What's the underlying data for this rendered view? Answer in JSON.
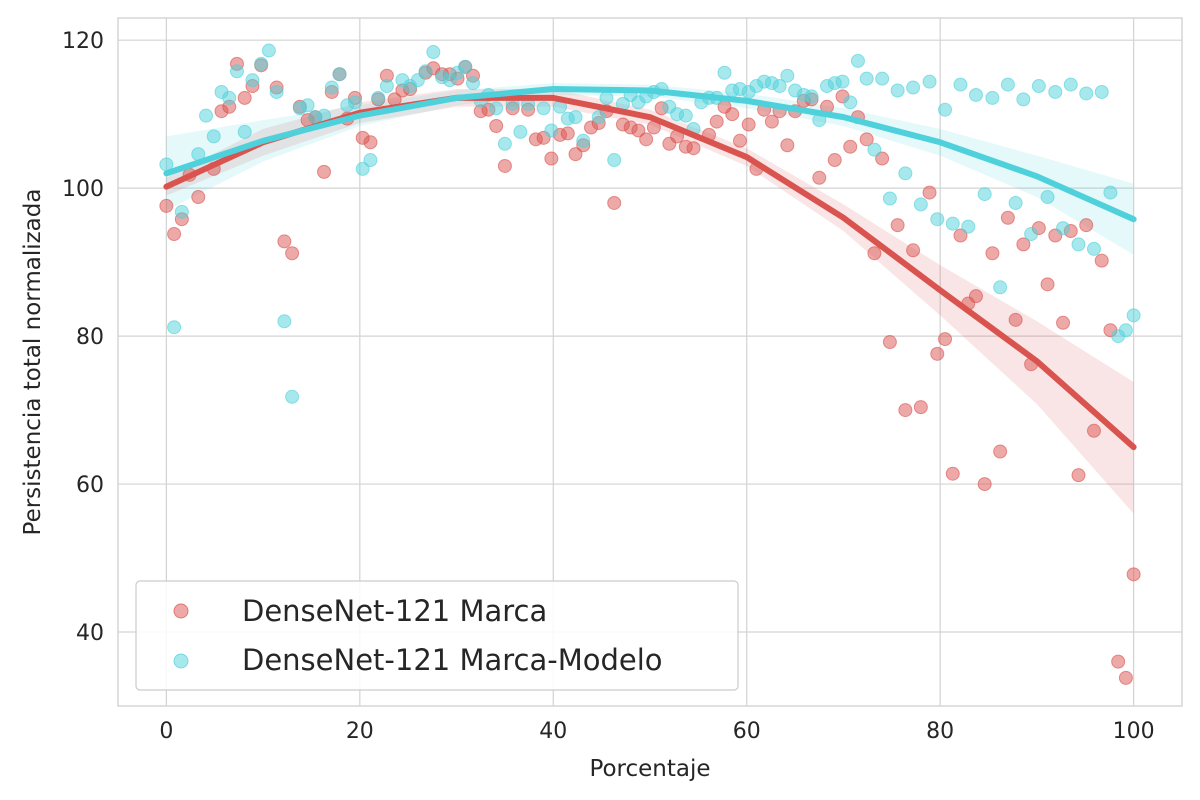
{
  "colors": {
    "marca": "#d9534f",
    "modelo": "#4fd1dc",
    "grid": "#d3d3d3",
    "frame": "#cccccc"
  },
  "chart_data": {
    "type": "scatter",
    "xlabel": "Porcentaje",
    "ylabel": "Persistencia total normalizada",
    "xlim": [
      -5,
      105
    ],
    "ylim": [
      30,
      123
    ],
    "xticks": [
      0,
      20,
      40,
      60,
      80,
      100
    ],
    "yticks": [
      40,
      60,
      80,
      100,
      120
    ],
    "grid": true,
    "legend_position": "lower-left",
    "series": [
      {
        "name": "DenseNet-121 Marca",
        "color_key": "marca",
        "points": [
          [
            0,
            97.6
          ],
          [
            0.8,
            93.8
          ],
          [
            1.6,
            95.8
          ],
          [
            2.4,
            101.8
          ],
          [
            3.3,
            98.8
          ],
          [
            4.9,
            102.6
          ],
          [
            5.7,
            110.4
          ],
          [
            6.5,
            111.0
          ],
          [
            7.3,
            116.8
          ],
          [
            8.1,
            112.2
          ],
          [
            8.9,
            113.8
          ],
          [
            9.8,
            116.6
          ],
          [
            11.4,
            113.6
          ],
          [
            12.2,
            92.8
          ],
          [
            13.0,
            91.2
          ],
          [
            13.8,
            111.0
          ],
          [
            14.6,
            109.2
          ],
          [
            15.4,
            109.6
          ],
          [
            16.3,
            102.2
          ],
          [
            17.1,
            113.0
          ],
          [
            17.9,
            115.4
          ],
          [
            18.7,
            109.4
          ],
          [
            19.5,
            112.2
          ],
          [
            20.3,
            106.8
          ],
          [
            21.1,
            106.2
          ],
          [
            21.9,
            112.0
          ],
          [
            22.8,
            115.2
          ],
          [
            23.6,
            112.0
          ],
          [
            24.4,
            113.2
          ],
          [
            25.2,
            113.4
          ],
          [
            26.8,
            115.6
          ],
          [
            27.6,
            116.2
          ],
          [
            28.5,
            115.4
          ],
          [
            29.3,
            115.4
          ],
          [
            30.1,
            114.8
          ],
          [
            30.9,
            116.4
          ],
          [
            31.7,
            115.2
          ],
          [
            32.5,
            110.4
          ],
          [
            33.3,
            110.6
          ],
          [
            34.1,
            108.4
          ],
          [
            35.0,
            103.0
          ],
          [
            35.8,
            110.8
          ],
          [
            37.4,
            110.6
          ],
          [
            38.2,
            106.6
          ],
          [
            39.0,
            106.8
          ],
          [
            39.8,
            104.0
          ],
          [
            40.7,
            107.2
          ],
          [
            41.5,
            107.4
          ],
          [
            42.3,
            104.6
          ],
          [
            43.1,
            105.8
          ],
          [
            43.9,
            108.2
          ],
          [
            44.7,
            108.8
          ],
          [
            45.5,
            110.4
          ],
          [
            46.3,
            98.0
          ],
          [
            47.2,
            108.6
          ],
          [
            48.0,
            108.2
          ],
          [
            48.8,
            107.8
          ],
          [
            49.6,
            106.6
          ],
          [
            50.4,
            108.2
          ],
          [
            51.2,
            110.8
          ],
          [
            52.0,
            106.0
          ],
          [
            52.8,
            107.0
          ],
          [
            53.7,
            105.6
          ],
          [
            54.5,
            105.4
          ],
          [
            56.1,
            107.2
          ],
          [
            56.9,
            109.0
          ],
          [
            57.7,
            111.0
          ],
          [
            58.5,
            110.0
          ],
          [
            59.3,
            106.4
          ],
          [
            60.2,
            108.6
          ],
          [
            61.0,
            102.6
          ],
          [
            61.8,
            110.6
          ],
          [
            62.6,
            109.0
          ],
          [
            63.4,
            110.4
          ],
          [
            64.2,
            105.8
          ],
          [
            65.0,
            110.4
          ],
          [
            65.9,
            111.8
          ],
          [
            66.7,
            112.0
          ],
          [
            67.5,
            101.4
          ],
          [
            68.3,
            111.0
          ],
          [
            69.1,
            103.8
          ],
          [
            69.9,
            112.4
          ],
          [
            70.7,
            105.6
          ],
          [
            71.5,
            109.6
          ],
          [
            72.4,
            106.6
          ],
          [
            73.2,
            91.2
          ],
          [
            74.0,
            104.0
          ],
          [
            74.8,
            79.2
          ],
          [
            75.6,
            95.0
          ],
          [
            76.4,
            70.0
          ],
          [
            77.2,
            91.6
          ],
          [
            78.0,
            70.4
          ],
          [
            78.9,
            99.4
          ],
          [
            79.7,
            77.6
          ],
          [
            80.5,
            79.6
          ],
          [
            81.3,
            61.4
          ],
          [
            82.1,
            93.6
          ],
          [
            82.9,
            84.4
          ],
          [
            83.7,
            85.4
          ],
          [
            84.6,
            60.0
          ],
          [
            85.4,
            91.2
          ],
          [
            86.2,
            64.4
          ],
          [
            87.0,
            96.0
          ],
          [
            87.8,
            82.2
          ],
          [
            88.6,
            92.4
          ],
          [
            89.4,
            76.2
          ],
          [
            90.2,
            94.6
          ],
          [
            91.1,
            87.0
          ],
          [
            91.9,
            93.6
          ],
          [
            92.7,
            81.8
          ],
          [
            93.5,
            94.2
          ],
          [
            94.3,
            61.2
          ],
          [
            95.1,
            95.0
          ],
          [
            95.9,
            67.2
          ],
          [
            96.7,
            90.2
          ],
          [
            97.6,
            80.8
          ],
          [
            98.4,
            36.0
          ],
          [
            99.2,
            33.8
          ],
          [
            100.0,
            47.8
          ]
        ],
        "fit": [
          [
            0,
            100.2
          ],
          [
            10,
            106.2
          ],
          [
            20,
            110.2
          ],
          [
            30,
            112.2
          ],
          [
            40,
            112.2
          ],
          [
            50,
            109.6
          ],
          [
            60,
            104.2
          ],
          [
            70,
            96.0
          ],
          [
            80,
            86.2
          ],
          [
            90,
            76.6
          ],
          [
            100,
            65.0
          ]
        ],
        "band_lower": [
          [
            0,
            99.0
          ],
          [
            10,
            104.4
          ],
          [
            20,
            108.8
          ],
          [
            30,
            111.0
          ],
          [
            40,
            111.0
          ],
          [
            50,
            108.6
          ],
          [
            60,
            103.0
          ],
          [
            70,
            94.2
          ],
          [
            80,
            82.8
          ],
          [
            90,
            70.8
          ],
          [
            100,
            56.0
          ]
        ],
        "band_upper": [
          [
            0,
            101.4
          ],
          [
            10,
            108.0
          ],
          [
            20,
            111.6
          ],
          [
            30,
            113.4
          ],
          [
            40,
            113.4
          ],
          [
            50,
            110.6
          ],
          [
            60,
            105.4
          ],
          [
            70,
            97.8
          ],
          [
            80,
            89.6
          ],
          [
            90,
            82.0
          ],
          [
            100,
            73.8
          ]
        ]
      },
      {
        "name": "DenseNet-121 Marca-Modelo",
        "color_key": "modelo",
        "points": [
          [
            0,
            103.2
          ],
          [
            0.8,
            81.2
          ],
          [
            1.6,
            96.8
          ],
          [
            3.3,
            104.6
          ],
          [
            4.1,
            109.8
          ],
          [
            4.9,
            107.0
          ],
          [
            5.7,
            113.0
          ],
          [
            6.5,
            112.2
          ],
          [
            7.3,
            115.8
          ],
          [
            8.1,
            107.6
          ],
          [
            8.9,
            114.6
          ],
          [
            9.8,
            116.8
          ],
          [
            10.6,
            118.6
          ],
          [
            11.4,
            113.0
          ],
          [
            12.2,
            82.0
          ],
          [
            13.0,
            71.8
          ],
          [
            13.8,
            110.8
          ],
          [
            14.6,
            111.2
          ],
          [
            15.4,
            109.6
          ],
          [
            16.3,
            109.8
          ],
          [
            17.1,
            113.6
          ],
          [
            17.9,
            115.4
          ],
          [
            18.7,
            111.2
          ],
          [
            19.5,
            111.6
          ],
          [
            20.3,
            102.6
          ],
          [
            21.1,
            103.8
          ],
          [
            21.9,
            112.2
          ],
          [
            22.8,
            113.8
          ],
          [
            24.4,
            114.6
          ],
          [
            25.2,
            113.8
          ],
          [
            26.0,
            114.6
          ],
          [
            26.8,
            115.8
          ],
          [
            27.6,
            118.4
          ],
          [
            28.5,
            115.0
          ],
          [
            29.3,
            114.6
          ],
          [
            30.1,
            115.6
          ],
          [
            30.9,
            116.4
          ],
          [
            31.7,
            114.2
          ],
          [
            32.5,
            111.8
          ],
          [
            33.3,
            112.6
          ],
          [
            34.1,
            110.8
          ],
          [
            35.0,
            106.0
          ],
          [
            35.8,
            111.4
          ],
          [
            36.6,
            107.6
          ],
          [
            37.4,
            111.4
          ],
          [
            39.0,
            110.8
          ],
          [
            39.8,
            107.8
          ],
          [
            40.7,
            111.0
          ],
          [
            41.5,
            109.4
          ],
          [
            42.3,
            109.6
          ],
          [
            43.1,
            106.4
          ],
          [
            44.7,
            109.6
          ],
          [
            45.5,
            112.2
          ],
          [
            46.3,
            103.8
          ],
          [
            47.2,
            111.4
          ],
          [
            48.0,
            112.6
          ],
          [
            48.8,
            111.6
          ],
          [
            49.6,
            112.4
          ],
          [
            50.4,
            113.0
          ],
          [
            51.2,
            113.4
          ],
          [
            52.0,
            111.0
          ],
          [
            52.8,
            110.0
          ],
          [
            53.7,
            109.8
          ],
          [
            54.5,
            108.0
          ],
          [
            55.3,
            111.6
          ],
          [
            56.1,
            112.2
          ],
          [
            56.9,
            112.2
          ],
          [
            57.7,
            115.6
          ],
          [
            58.5,
            113.2
          ],
          [
            59.3,
            113.4
          ],
          [
            60.2,
            113.0
          ],
          [
            61.0,
            113.8
          ],
          [
            61.8,
            114.4
          ],
          [
            62.6,
            114.2
          ],
          [
            63.4,
            113.8
          ],
          [
            64.2,
            115.2
          ],
          [
            65.0,
            113.2
          ],
          [
            65.9,
            112.6
          ],
          [
            66.7,
            112.4
          ],
          [
            67.5,
            109.2
          ],
          [
            68.3,
            113.8
          ],
          [
            69.1,
            114.2
          ],
          [
            69.9,
            114.4
          ],
          [
            70.7,
            111.6
          ],
          [
            71.5,
            117.2
          ],
          [
            72.4,
            114.8
          ],
          [
            73.2,
            105.2
          ],
          [
            74.0,
            114.8
          ],
          [
            74.8,
            98.6
          ],
          [
            75.6,
            113.2
          ],
          [
            76.4,
            102.0
          ],
          [
            77.2,
            113.6
          ],
          [
            78.0,
            97.8
          ],
          [
            78.9,
            114.4
          ],
          [
            79.7,
            95.8
          ],
          [
            80.5,
            110.6
          ],
          [
            81.3,
            95.2
          ],
          [
            82.1,
            114.0
          ],
          [
            82.9,
            94.8
          ],
          [
            83.7,
            112.6
          ],
          [
            84.6,
            99.2
          ],
          [
            85.4,
            112.2
          ],
          [
            86.2,
            86.6
          ],
          [
            87.0,
            114.0
          ],
          [
            87.8,
            98.0
          ],
          [
            88.6,
            112.0
          ],
          [
            89.4,
            93.8
          ],
          [
            90.2,
            113.8
          ],
          [
            91.1,
            98.8
          ],
          [
            91.9,
            113.0
          ],
          [
            92.7,
            94.6
          ],
          [
            93.5,
            114.0
          ],
          [
            94.3,
            92.4
          ],
          [
            95.1,
            112.8
          ],
          [
            95.9,
            91.8
          ],
          [
            96.7,
            113.0
          ],
          [
            97.6,
            99.4
          ],
          [
            98.4,
            80.0
          ],
          [
            99.2,
            80.8
          ],
          [
            100.0,
            82.8
          ]
        ],
        "fit": [
          [
            0,
            102.0
          ],
          [
            10,
            106.4
          ],
          [
            20,
            109.8
          ],
          [
            30,
            112.2
          ],
          [
            40,
            113.4
          ],
          [
            50,
            113.2
          ],
          [
            60,
            111.8
          ],
          [
            70,
            109.6
          ],
          [
            80,
            106.2
          ],
          [
            90,
            101.6
          ],
          [
            100,
            95.8
          ]
        ],
        "band_lower": [
          [
            0,
            97.0
          ],
          [
            10,
            103.6
          ],
          [
            20,
            108.4
          ],
          [
            30,
            111.2
          ],
          [
            40,
            112.6
          ],
          [
            50,
            112.4
          ],
          [
            60,
            110.8
          ],
          [
            70,
            108.4
          ],
          [
            80,
            104.4
          ],
          [
            90,
            98.8
          ],
          [
            100,
            91.0
          ]
        ],
        "band_upper": [
          [
            0,
            107.0
          ],
          [
            10,
            109.2
          ],
          [
            20,
            111.2
          ],
          [
            30,
            113.2
          ],
          [
            40,
            114.2
          ],
          [
            50,
            114.0
          ],
          [
            60,
            112.8
          ],
          [
            70,
            110.8
          ],
          [
            80,
            108.0
          ],
          [
            90,
            104.4
          ],
          [
            100,
            100.6
          ]
        ]
      }
    ]
  }
}
